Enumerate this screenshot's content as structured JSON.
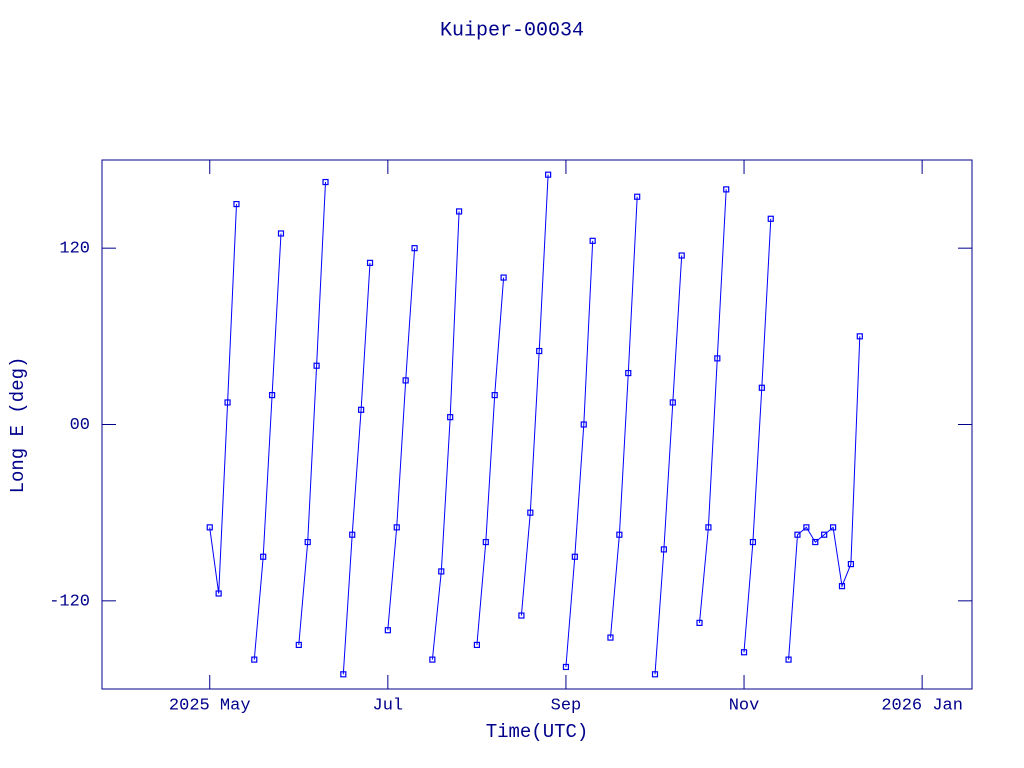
{
  "chart_data": {
    "type": "line",
    "title": "Kuiper-00034",
    "x_label": "Time(UTC)",
    "y_label": "Long E (deg)",
    "color": "#0000ff",
    "markers": true,
    "xlim": [
      2.79,
      12.56
    ],
    "xticks": [
      {
        "value": 4,
        "label": "2025 May"
      },
      {
        "value": 6,
        "label": "Jul"
      },
      {
        "value": 8,
        "label": "Sep"
      },
      {
        "value": 10,
        "label": "Nov"
      },
      {
        "value": 12,
        "label": "2026 Jan"
      }
    ],
    "ylim": [
      -180,
      180
    ],
    "yticks": [
      {
        "value": -120,
        "label": "-120"
      },
      {
        "value": 0,
        "label": "00"
      },
      {
        "value": 120,
        "label": "120"
      }
    ],
    "x": [
      4.0,
      4.1,
      4.2,
      4.3,
      4.4,
      4.5,
      4.6,
      4.7,
      4.8,
      4.9,
      5.0,
      5.1,
      5.2,
      5.3,
      5.4,
      5.5,
      5.6,
      5.7,
      5.8,
      5.9,
      6.0,
      6.1,
      6.2,
      6.3,
      6.4,
      6.5,
      6.6,
      6.7,
      6.8,
      6.9,
      7.0,
      7.1,
      7.2,
      7.3,
      7.4,
      7.5,
      7.6,
      7.7,
      7.8,
      7.9,
      8.0,
      8.1,
      8.2,
      8.3,
      8.4,
      8.5,
      8.6,
      8.7,
      8.8,
      8.9,
      9.0,
      9.1,
      9.2,
      9.3,
      9.4,
      9.5,
      9.6,
      9.7,
      9.8,
      9.9,
      10.0,
      10.1,
      10.2,
      10.3,
      10.4,
      10.5,
      10.6,
      10.7,
      10.8,
      10.9,
      11.0,
      11.1,
      11.2,
      11.3
    ],
    "values": [
      -70,
      -115,
      15,
      150,
      null,
      -160,
      -90,
      20,
      130,
      null,
      -150,
      -80,
      40,
      165,
      null,
      -170,
      -75,
      10,
      110,
      null,
      -140,
      -70,
      30,
      120,
      null,
      -160,
      -100,
      5,
      145,
      null,
      -150,
      -80,
      20,
      100,
      null,
      -130,
      -60,
      50,
      170,
      null,
      -165,
      -90,
      0,
      125,
      null,
      -145,
      -75,
      35,
      155,
      null,
      -170,
      -85,
      15,
      115,
      null,
      -135,
      -70,
      45,
      160,
      null,
      -155,
      -80,
      25,
      140,
      null,
      -160,
      -75,
      -70,
      -80,
      -75,
      -70,
      -110,
      -95,
      60
    ]
  }
}
